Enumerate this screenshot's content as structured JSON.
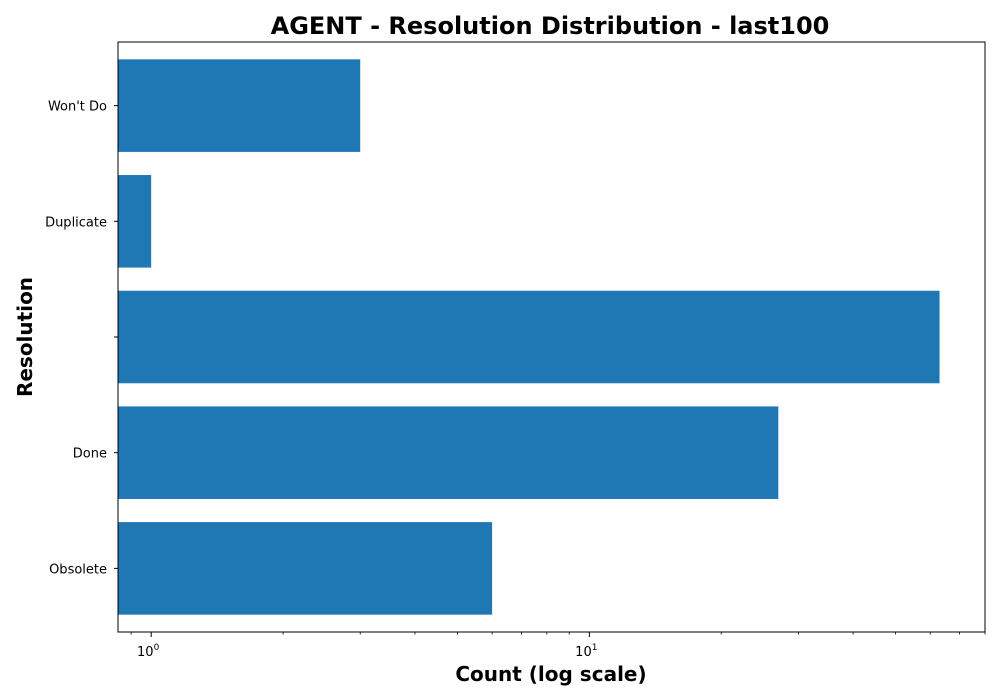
{
  "chart_data": {
    "type": "bar",
    "orientation": "horizontal",
    "title": "AGENT - Resolution Distribution - last100",
    "xlabel": "Count (log scale)",
    "ylabel": "Resolution",
    "x_scale": "log",
    "xlim": [
      0.84,
      80
    ],
    "x_ticks": [
      {
        "value": 1,
        "base": "10",
        "exp": "0"
      },
      {
        "value": 10,
        "base": "10",
        "exp": "1"
      }
    ],
    "categories": [
      "Obsolete",
      "Done",
      "",
      "Duplicate",
      "Won't Do"
    ],
    "values": [
      6,
      27,
      63,
      1,
      3
    ],
    "bar_color": "#1f77b4",
    "grid": false,
    "legend": "none"
  }
}
